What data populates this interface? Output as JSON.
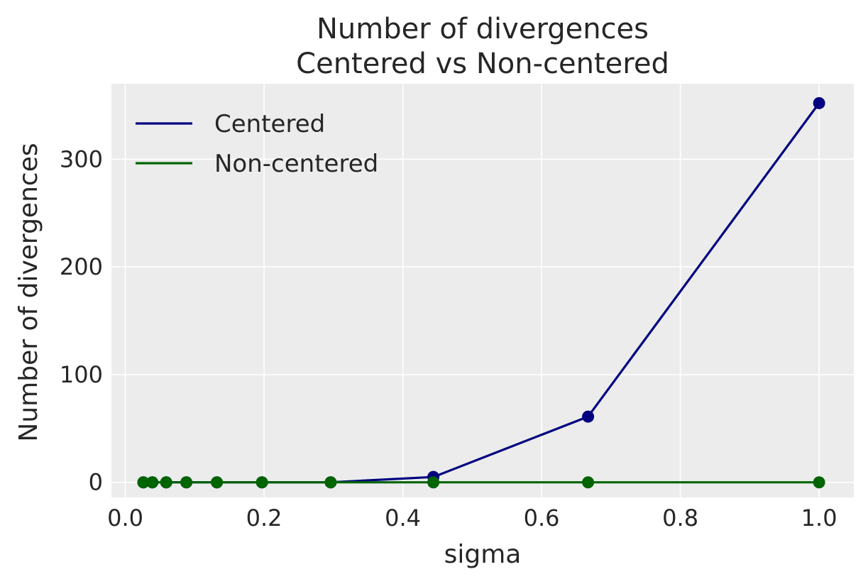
{
  "chart_data": {
    "type": "line",
    "title": "Number of divergences",
    "subtitle": "Centered vs Non-centered",
    "xlabel": "sigma",
    "ylabel": "Number of divergences",
    "xlim": [
      -0.02,
      1.05
    ],
    "ylim": [
      -14,
      370
    ],
    "xticks": [
      0.0,
      0.2,
      0.4,
      0.6,
      0.8,
      1.0
    ],
    "xtick_labels": [
      "0.0",
      "0.2",
      "0.4",
      "0.6",
      "0.8",
      "1.0"
    ],
    "yticks": [
      0,
      100,
      200,
      300
    ],
    "ytick_labels": [
      "0",
      "100",
      "200",
      "300"
    ],
    "grid": true,
    "legend_position": "top-left",
    "background": "#ececec",
    "grid_color": "#ffffff",
    "x": [
      0.026,
      0.039,
      0.059,
      0.088,
      0.132,
      0.197,
      0.296,
      0.444,
      0.667,
      1.0
    ],
    "series": [
      {
        "name": "Centered",
        "color": "#000080",
        "values": [
          0,
          0,
          0,
          0,
          0,
          0,
          0,
          5,
          61,
          352
        ]
      },
      {
        "name": "Non-centered",
        "color": "#006400",
        "values": [
          0,
          0,
          0,
          0,
          0,
          0,
          0,
          0,
          0,
          0
        ]
      }
    ]
  }
}
